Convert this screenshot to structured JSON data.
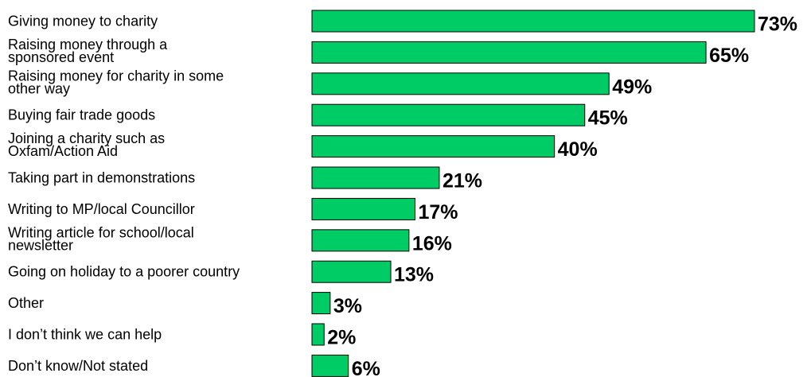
{
  "chart_data": {
    "type": "bar",
    "orientation": "horizontal",
    "categories": [
      "Giving money to charity",
      "Raising money through a sponsored event",
      "Raising money for charity in some other way",
      "Buying fair trade goods",
      "Joining a charity such as Oxfam/Action Aid",
      "Taking part in demonstrations",
      "Writing to MP/local Councillor",
      "Writing article for school/local newsletter",
      "Going on holiday to a poorer country",
      "Other",
      "I don’t think we can help",
      "Don’t know/Not stated"
    ],
    "label_lines": [
      [
        "Giving money to charity"
      ],
      [
        "Raising money through a",
        "sponsored event"
      ],
      [
        "Raising money for charity in some",
        "other way"
      ],
      [
        "Buying fair trade goods"
      ],
      [
        "Joining a charity such as",
        "Oxfam/Action Aid"
      ],
      [
        "Taking part in demonstrations"
      ],
      [
        "Writing to MP/local Councillor"
      ],
      [
        "Writing article for school/local",
        "newsletter"
      ],
      [
        "Going on holiday to a poorer country"
      ],
      [
        "Other"
      ],
      [
        "I don’t think we can help"
      ],
      [
        "Don’t know/Not stated"
      ]
    ],
    "values": [
      73,
      65,
      49,
      45,
      40,
      21,
      17,
      16,
      13,
      3,
      2,
      6
    ],
    "value_labels": [
      "73%",
      "65%",
      "49%",
      "45%",
      "40%",
      "21%",
      "17%",
      "16%",
      "13%",
      "3%",
      "2%",
      "6%"
    ],
    "bar_color": "#00cc66",
    "xlim": [
      0,
      73
    ],
    "grid": false,
    "legend": "none",
    "title": "",
    "xlabel": "",
    "ylabel": ""
  }
}
